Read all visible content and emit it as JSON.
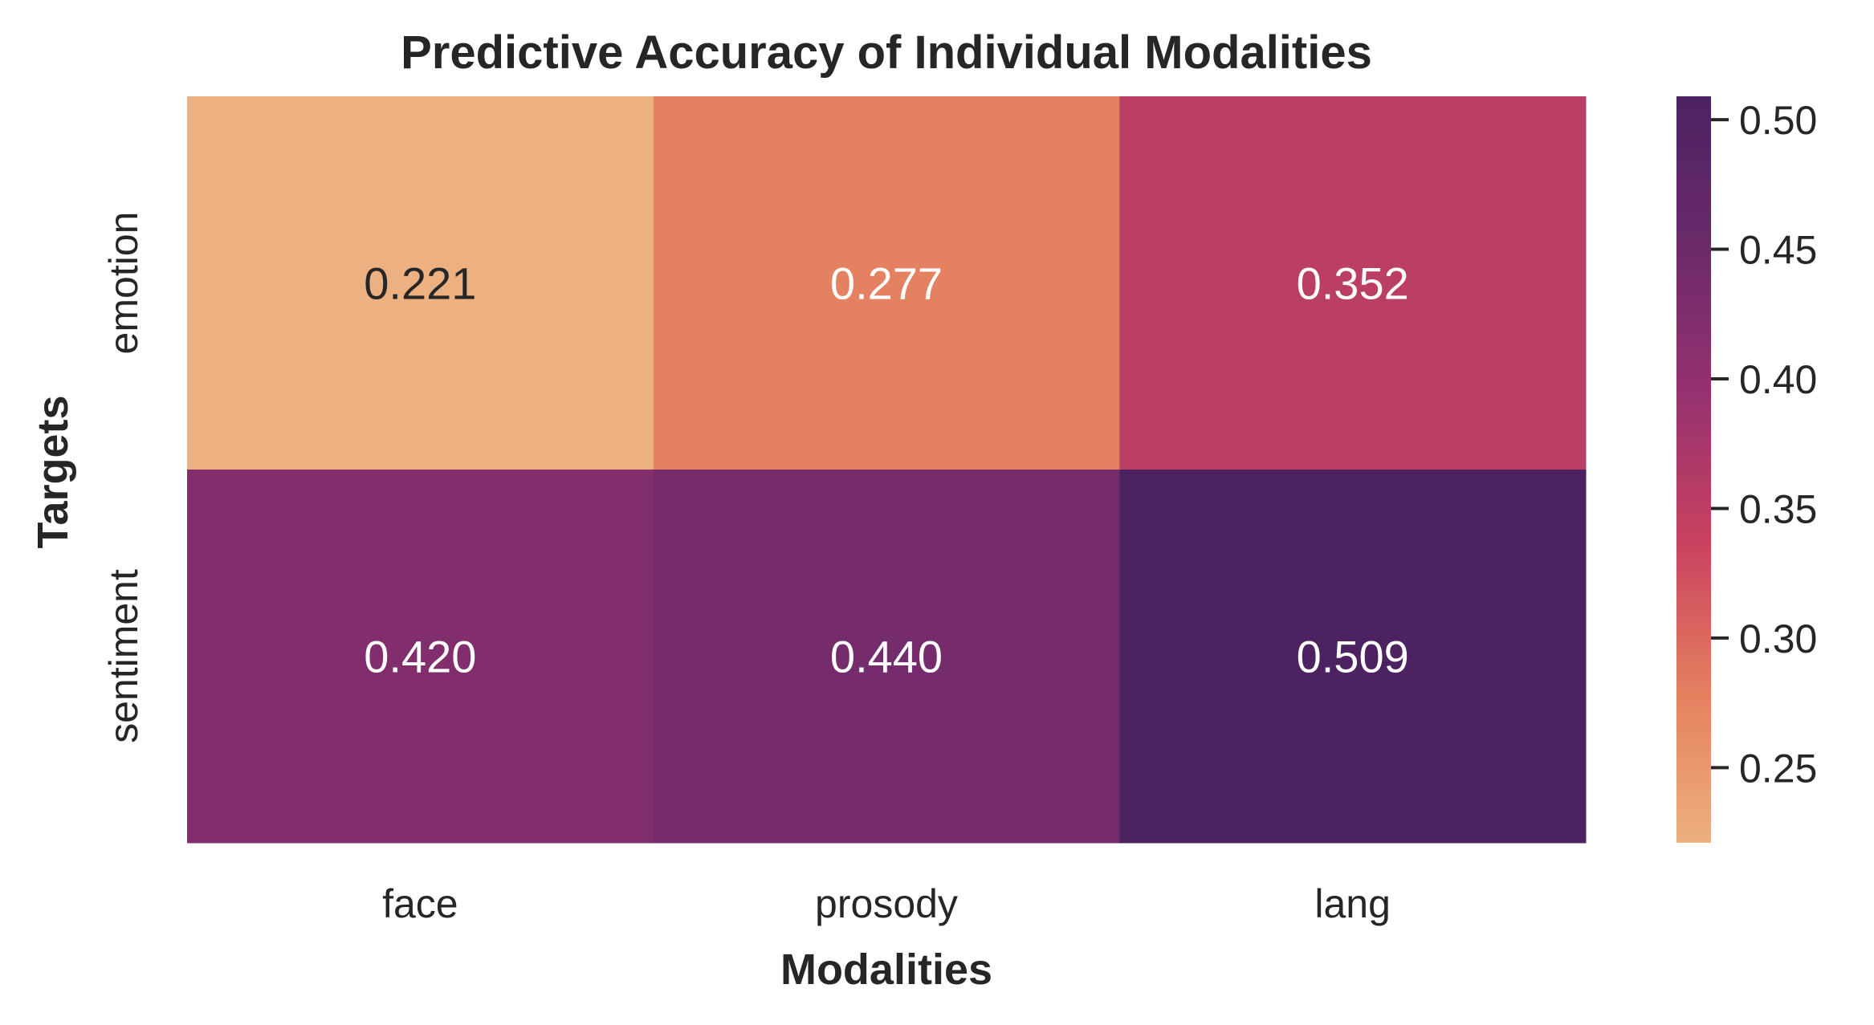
{
  "chart_data": {
    "type": "heatmap",
    "title": "Predictive Accuracy of Individual Modalities",
    "xlabel": "Modalities",
    "ylabel": "Targets",
    "x_categories": [
      "face",
      "prosody",
      "lang"
    ],
    "y_categories": [
      "emotion",
      "sentiment"
    ],
    "values": [
      [
        0.221,
        0.277,
        0.352
      ],
      [
        0.42,
        0.44,
        0.509
      ]
    ],
    "cell_labels": [
      [
        "0.221",
        "0.277",
        "0.352"
      ],
      [
        "0.420",
        "0.440",
        "0.509"
      ]
    ],
    "colorbar": {
      "vmin": 0.221,
      "vmax": 0.509,
      "ticks": [
        0.25,
        0.3,
        0.35,
        0.4,
        0.45,
        0.5
      ],
      "tick_labels": [
        "0.25",
        "0.30",
        "0.35",
        "0.40",
        "0.45",
        "0.50"
      ],
      "colormap": "flare",
      "colors": [
        "#edb081",
        "#e4805f",
        "#c9425f",
        "#96326f",
        "#6b2a6b",
        "#4c2260"
      ]
    },
    "label_color_light": "#ffffff",
    "label_color_dark": "#262626",
    "grid": false
  }
}
